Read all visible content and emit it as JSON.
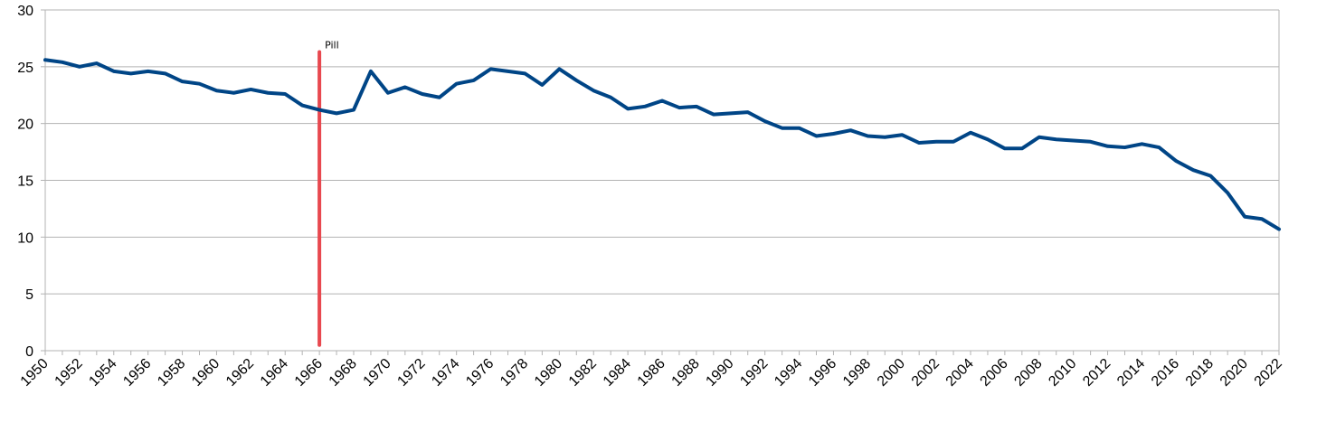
{
  "chart_data": {
    "type": "line",
    "title": "",
    "xlabel": "",
    "ylabel": "",
    "ylim": [
      0,
      30
    ],
    "yticks": [
      0,
      5,
      10,
      15,
      20,
      25,
      30
    ],
    "xlim": [
      1950,
      2022
    ],
    "xtick_step": 2,
    "grid": true,
    "line_color": "#004586",
    "annotation": {
      "label": "Pill",
      "x": 1966,
      "y_from": 0.5,
      "y_to": 26.3,
      "color": "#e8484f"
    },
    "series": [
      {
        "x": [
          1950,
          1951,
          1952,
          1953,
          1954,
          1955,
          1956,
          1957,
          1958,
          1959,
          1960,
          1961,
          1962,
          1963,
          1964,
          1965,
          1966,
          1967,
          1968,
          1969,
          1970,
          1971,
          1972,
          1973,
          1974,
          1975,
          1976,
          1977,
          1978,
          1979,
          1980,
          1981,
          1982,
          1983,
          1984,
          1985,
          1986,
          1987,
          1988,
          1989,
          1990,
          1991,
          1992,
          1993,
          1994,
          1995,
          1996,
          1997,
          1998,
          1999,
          2000,
          2001,
          2002,
          2003,
          2004,
          2005,
          2006,
          2007,
          2008,
          2009,
          2010,
          2011,
          2012,
          2013,
          2014,
          2015,
          2016,
          2017,
          2018,
          2019,
          2020,
          2021,
          2022
        ],
        "y": [
          25.6,
          25.4,
          25.0,
          25.3,
          24.6,
          24.4,
          24.6,
          24.4,
          23.7,
          23.5,
          22.9,
          22.7,
          23.0,
          22.7,
          22.6,
          21.6,
          21.2,
          20.9,
          21.2,
          24.6,
          22.7,
          23.2,
          22.6,
          22.3,
          23.5,
          23.8,
          24.8,
          24.6,
          24.4,
          23.4,
          24.8,
          23.8,
          22.9,
          22.3,
          21.3,
          21.5,
          22.0,
          21.4,
          21.5,
          20.8,
          20.9,
          21.0,
          20.2,
          19.6,
          19.6,
          18.9,
          19.1,
          19.4,
          18.9,
          18.8,
          19.0,
          18.3,
          18.4,
          18.4,
          19.2,
          18.6,
          17.8,
          17.8,
          18.8,
          18.6,
          18.5,
          18.4,
          18.0,
          17.9,
          18.2,
          17.9,
          16.7,
          15.9,
          15.4,
          13.9,
          11.8,
          11.6,
          10.7
        ]
      }
    ]
  }
}
